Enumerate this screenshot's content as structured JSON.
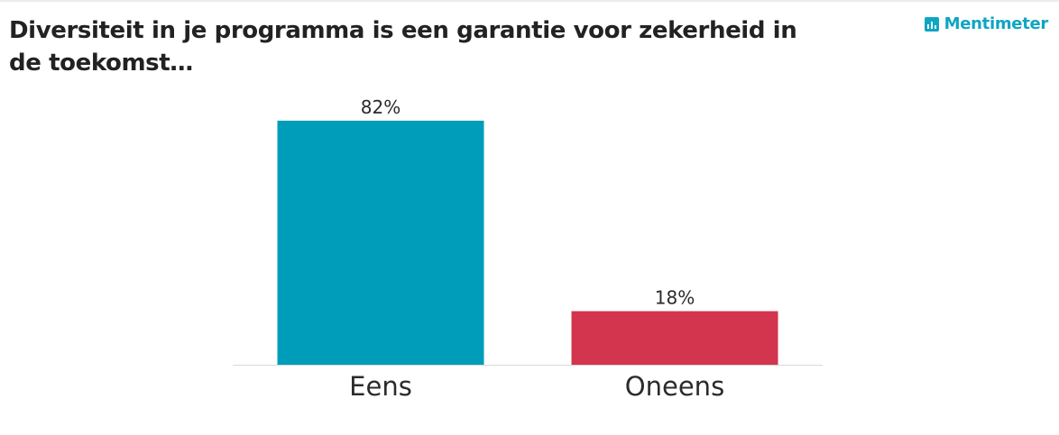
{
  "header": {
    "title": "Diversiteit in je programma is een garantie voor zekerheid in de toekomst…",
    "brand_name": "Mentimeter",
    "brand_icon": "bar-chart-logo-icon",
    "brand_color": "#0fa5c4"
  },
  "chart_data": {
    "type": "bar",
    "categories": [
      "Eens",
      "Oneens"
    ],
    "values": [
      82,
      18
    ],
    "value_labels": [
      "82%",
      "18%"
    ],
    "colors": [
      "#009dbb",
      "#d3344e"
    ],
    "ylim": [
      0,
      100
    ],
    "grid": false,
    "legend": "none"
  }
}
